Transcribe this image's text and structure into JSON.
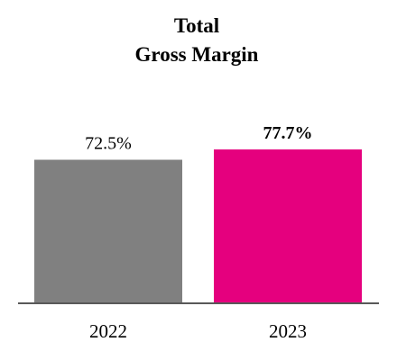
{
  "chart_data": {
    "type": "bar",
    "title": [
      "Total",
      "Gross Margin"
    ],
    "categories": [
      "2022",
      "2023"
    ],
    "values": [
      72.5,
      77.7
    ],
    "value_labels": [
      "72.5%",
      "77.7%"
    ],
    "bold_labels": [
      false,
      true
    ],
    "colors": [
      "#808080",
      "#e5007e"
    ],
    "axis_color": "#595959",
    "ylim": [
      0,
      100
    ],
    "grid": false,
    "legend": "none"
  }
}
